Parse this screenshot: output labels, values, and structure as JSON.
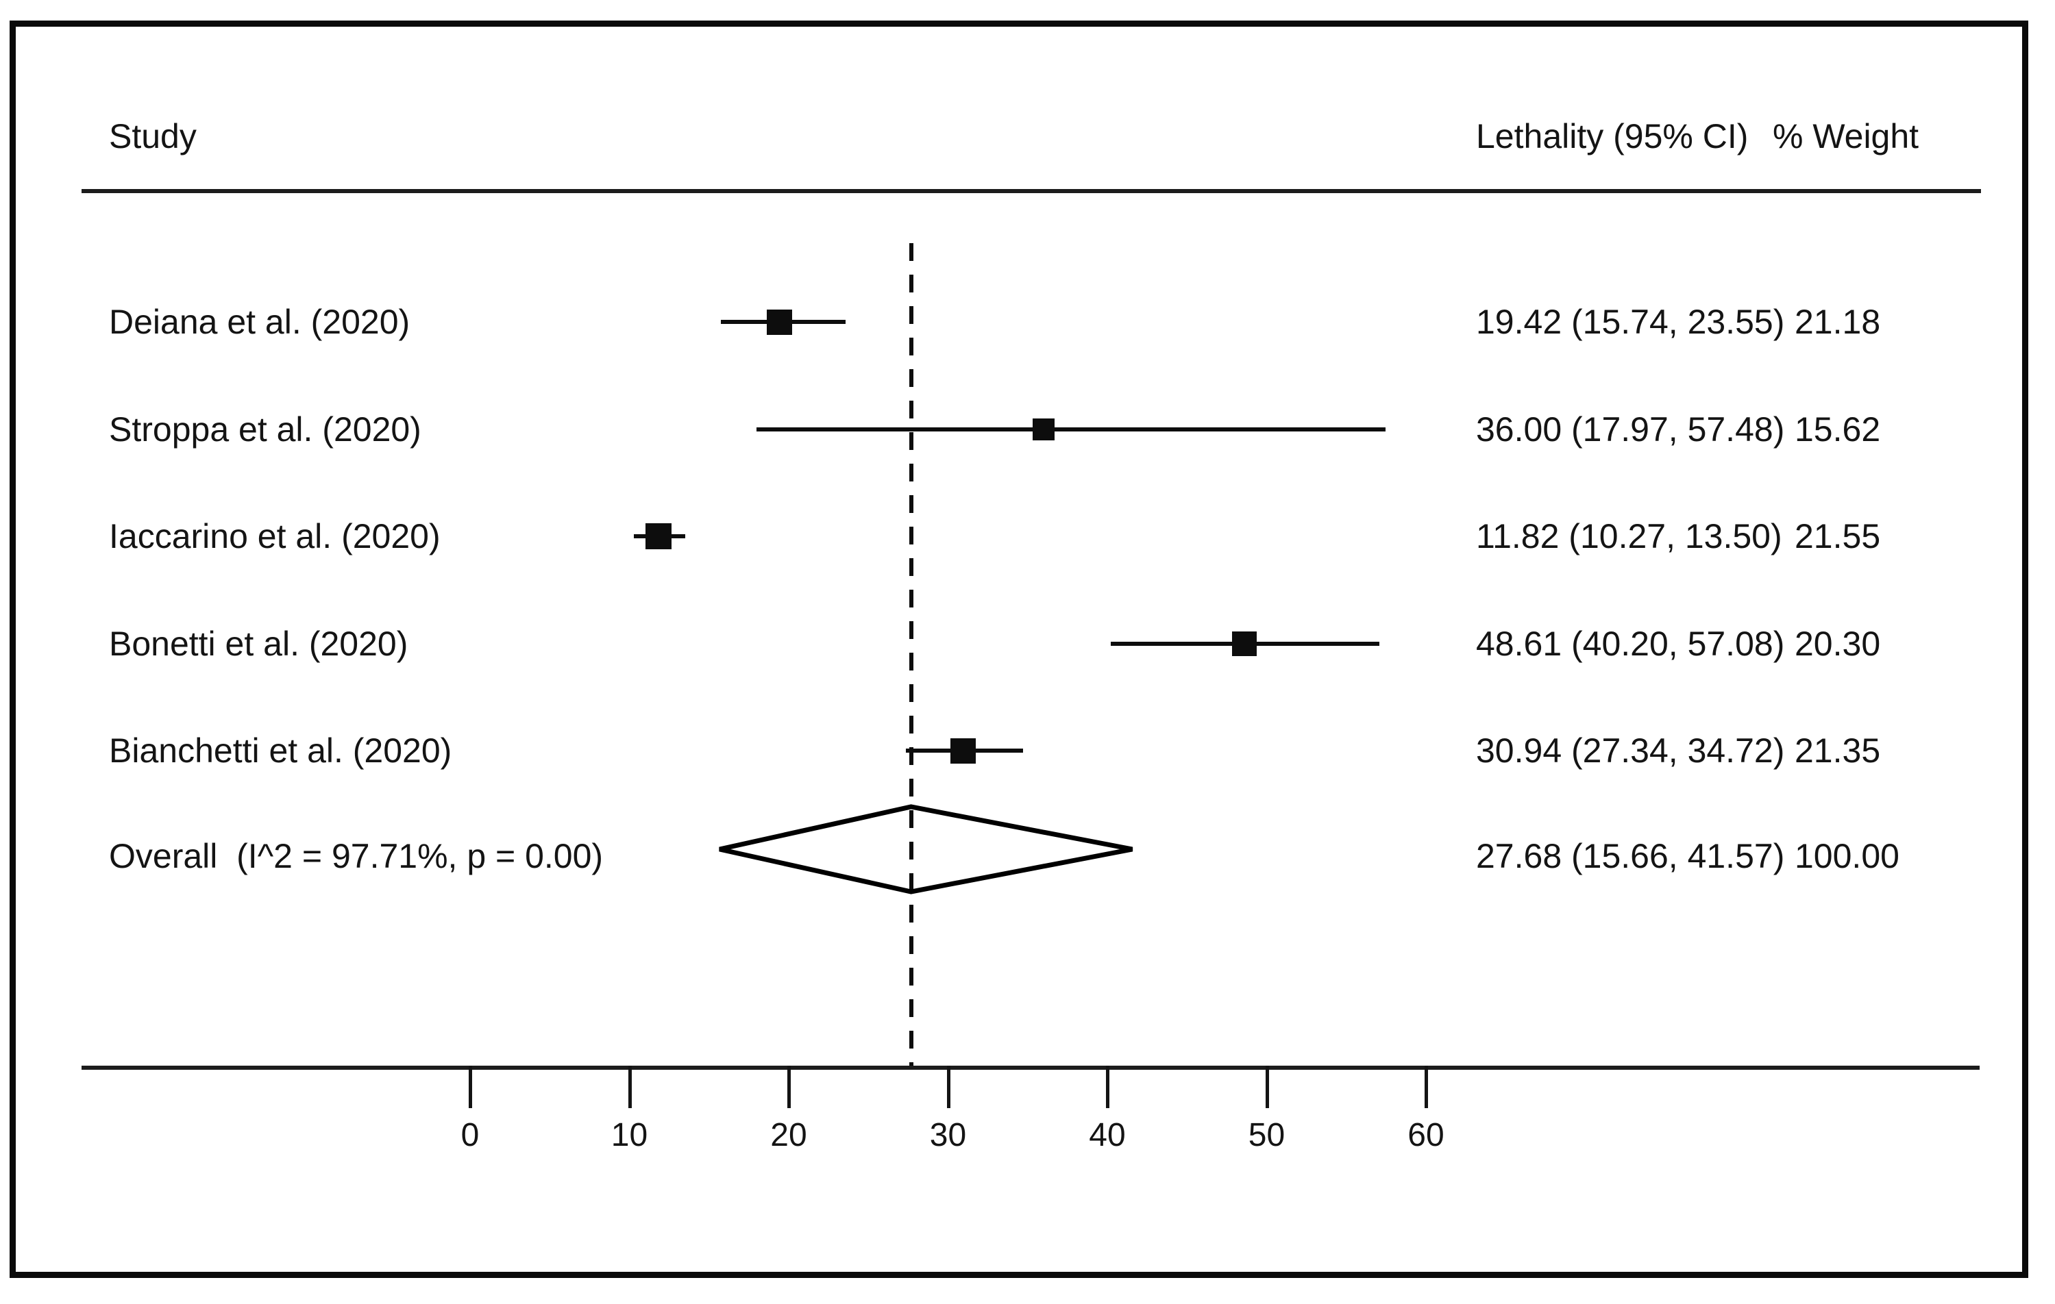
{
  "figure": {
    "background_color": "#ffffff",
    "frame_color": "#000000",
    "columns": {
      "study_header": "Study",
      "ci_header": "Lethality (95% CI)",
      "weight_header": "% Weight"
    }
  },
  "chart_data": {
    "type": "forest",
    "title": "",
    "xlabel": "",
    "x_axis": {
      "ticks": [
        0,
        10,
        20,
        30,
        40,
        50,
        60
      ],
      "grid": false
    },
    "reference_line_value": 27.68,
    "marker_color": "#000000",
    "studies": [
      {
        "label": "Deiana et al. (2020)",
        "estimate": 19.42,
        "ci_low": 15.74,
        "ci_high": 23.55,
        "weight": 21.18,
        "ci_text": "19.42 (15.74, 23.55)",
        "weight_text": "21.18"
      },
      {
        "label": "Stroppa et al. (2020)",
        "estimate": 36.0,
        "ci_low": 17.97,
        "ci_high": 57.48,
        "weight": 15.62,
        "ci_text": "36.00 (17.97, 57.48)",
        "weight_text": "15.62"
      },
      {
        "label": "Iaccarino et al. (2020)",
        "estimate": 11.82,
        "ci_low": 10.27,
        "ci_high": 13.5,
        "weight": 21.55,
        "ci_text": "11.82 (10.27, 13.50)",
        "weight_text": "21.55"
      },
      {
        "label": "Bonetti et al. (2020)",
        "estimate": 48.61,
        "ci_low": 40.2,
        "ci_high": 57.08,
        "weight": 20.3,
        "ci_text": "48.61 (40.20, 57.08)",
        "weight_text": "20.30"
      },
      {
        "label": "Bianchetti et al. (2020)",
        "estimate": 30.94,
        "ci_low": 27.34,
        "ci_high": 34.72,
        "weight": 21.35,
        "ci_text": "30.94 (27.34, 34.72)",
        "weight_text": "21.35"
      }
    ],
    "overall": {
      "label": "Overall  (I^2 = 97.71%, p = 0.00)",
      "estimate": 27.68,
      "ci_low": 15.66,
      "ci_high": 41.57,
      "weight": 100.0,
      "ci_text": "27.68 (15.66, 41.57)",
      "weight_text": "100.00"
    }
  }
}
